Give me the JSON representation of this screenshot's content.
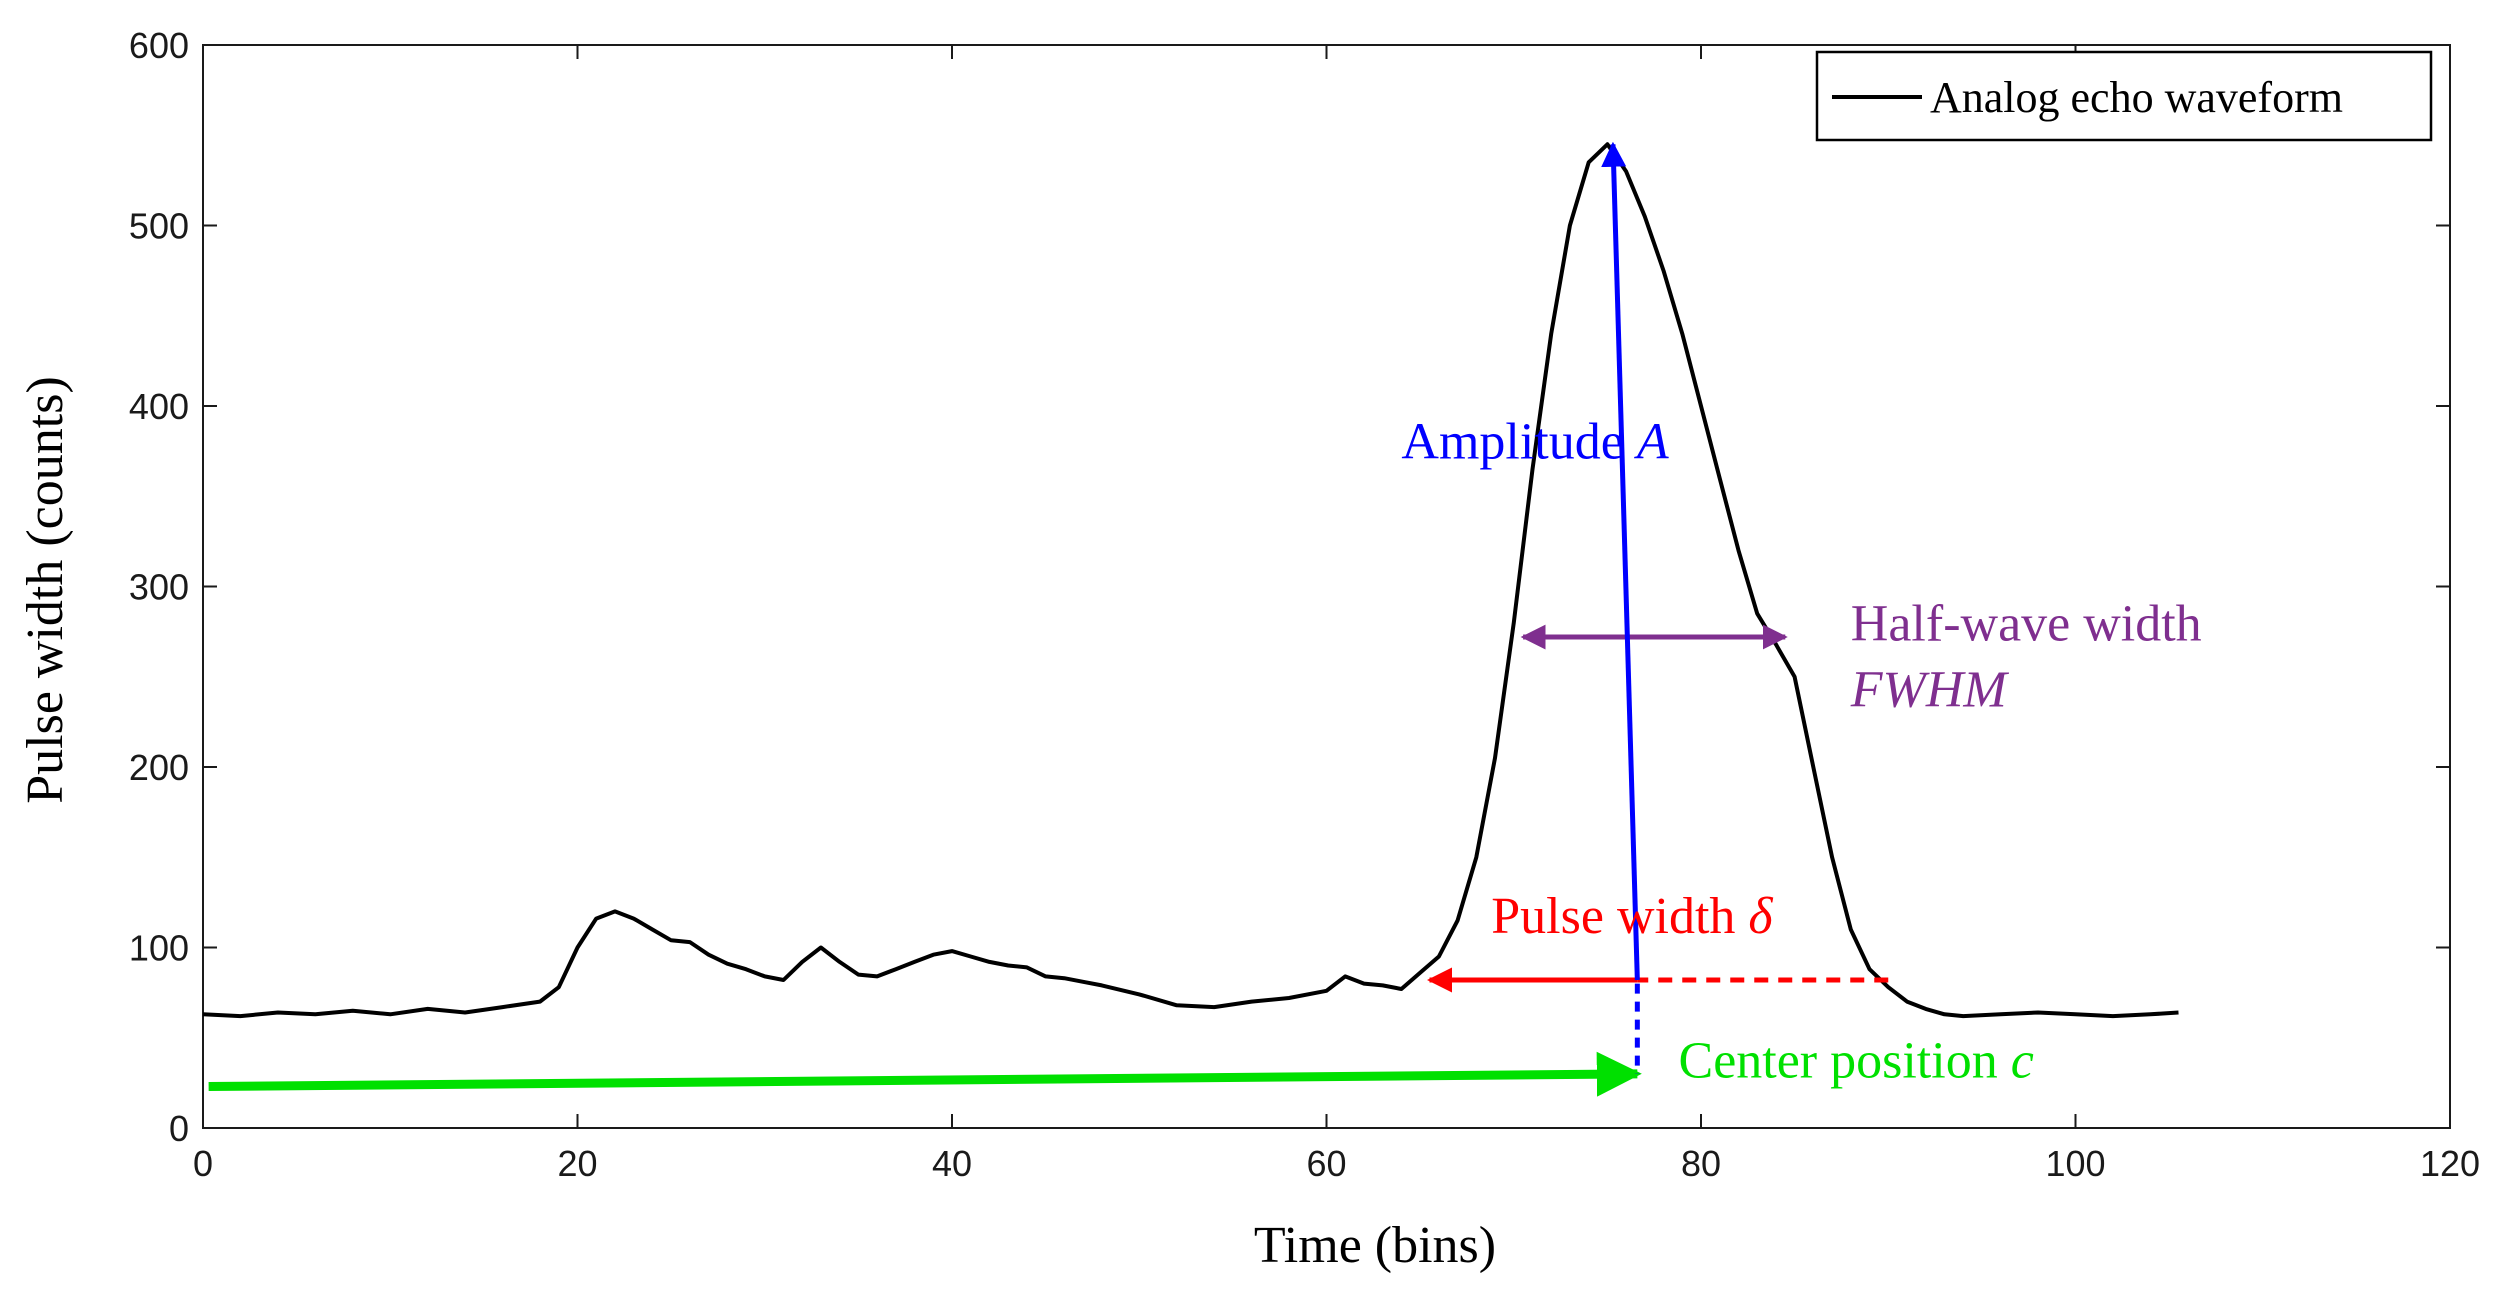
{
  "chart_data": {
    "type": "line",
    "title": "",
    "xlabel": "Time (bins)",
    "ylabel": "Pulse width (counts)",
    "xlim": [
      0,
      120
    ],
    "ylim": [
      0,
      600
    ],
    "xticks": [
      0,
      20,
      40,
      60,
      80,
      100,
      120
    ],
    "yticks": [
      0,
      100,
      200,
      300,
      400,
      500,
      600
    ],
    "xtick_labels": [
      "0",
      "20",
      "40",
      "60",
      "80",
      "100",
      "120"
    ],
    "ytick_labels": [
      "0",
      "100",
      "200",
      "300",
      "400",
      "500",
      "600"
    ],
    "grid": false,
    "legend": {
      "position": "top-right",
      "entries": [
        "Analog echo waveform"
      ]
    },
    "series": [
      {
        "name": "Analog echo waveform",
        "color": "#000000",
        "x": [
          0,
          2,
          4,
          6,
          8,
          10,
          12,
          14,
          16,
          18,
          19,
          20,
          21,
          22,
          23,
          24,
          25,
          26,
          27,
          28,
          29,
          30,
          31,
          32,
          33,
          34,
          35,
          36,
          37,
          38,
          39,
          40,
          41,
          42,
          43,
          44,
          45,
          46,
          47,
          48,
          50,
          52,
          54,
          56,
          58,
          60,
          61,
          62,
          63,
          64,
          65,
          66,
          67,
          68,
          69,
          70,
          71,
          72,
          73,
          74,
          75,
          76,
          77,
          78,
          79,
          80,
          81,
          82,
          83,
          84,
          85,
          86,
          87,
          88,
          89,
          90,
          91,
          92,
          93,
          94,
          96,
          98,
          100,
          102,
          104,
          105.5
        ],
        "values": [
          63,
          62,
          64,
          63,
          65,
          63,
          66,
          64,
          67,
          70,
          78,
          100,
          116,
          120,
          116,
          110,
          104,
          103,
          96,
          91,
          88,
          84,
          82,
          92,
          100,
          92,
          85,
          84,
          88,
          92,
          96,
          98,
          95,
          92,
          90,
          89,
          84,
          83,
          81,
          79,
          74,
          68,
          67,
          70,
          72,
          76,
          84,
          80,
          79,
          77,
          86,
          95,
          115,
          150,
          205,
          280,
          365,
          440,
          500,
          535,
          545,
          530,
          505,
          475,
          440,
          400,
          360,
          320,
          285,
          268,
          250,
          200,
          150,
          110,
          88,
          78,
          70,
          66,
          63,
          62,
          63,
          64,
          63,
          62,
          63,
          64
        ]
      }
    ],
    "annotations": [
      {
        "label": "Amplitude",
        "symbol": "A",
        "color": "#0000ff",
        "from": [
          76.6,
          82
        ],
        "to": [
          75.3,
          545
        ],
        "text_at": [
          64,
          371
        ]
      },
      {
        "label": "Half-wave width",
        "symbol": "FWHM",
        "color": "#7f2f8f",
        "from": [
          70.5,
          272
        ],
        "to": [
          84.5,
          272
        ],
        "text_at": [
          88,
          270
        ]
      },
      {
        "label": "Pulse width",
        "symbol": "δ",
        "color": "#ff0000",
        "from": [
          90,
          82
        ],
        "to": [
          65.5,
          82
        ],
        "solid_until_x": 76.6,
        "text_at": [
          68.8,
          108
        ]
      },
      {
        "label": "Center position",
        "symbol": "c",
        "color": "#00e000",
        "from": [
          0.3,
          23
        ],
        "to": [
          76.6,
          30
        ],
        "text_at": [
          78.8,
          28
        ]
      },
      {
        "label": "center-drop",
        "color": "#0000ff",
        "from": [
          76.6,
          80
        ],
        "to": [
          76.6,
          30
        ],
        "dashed": true
      }
    ]
  }
}
